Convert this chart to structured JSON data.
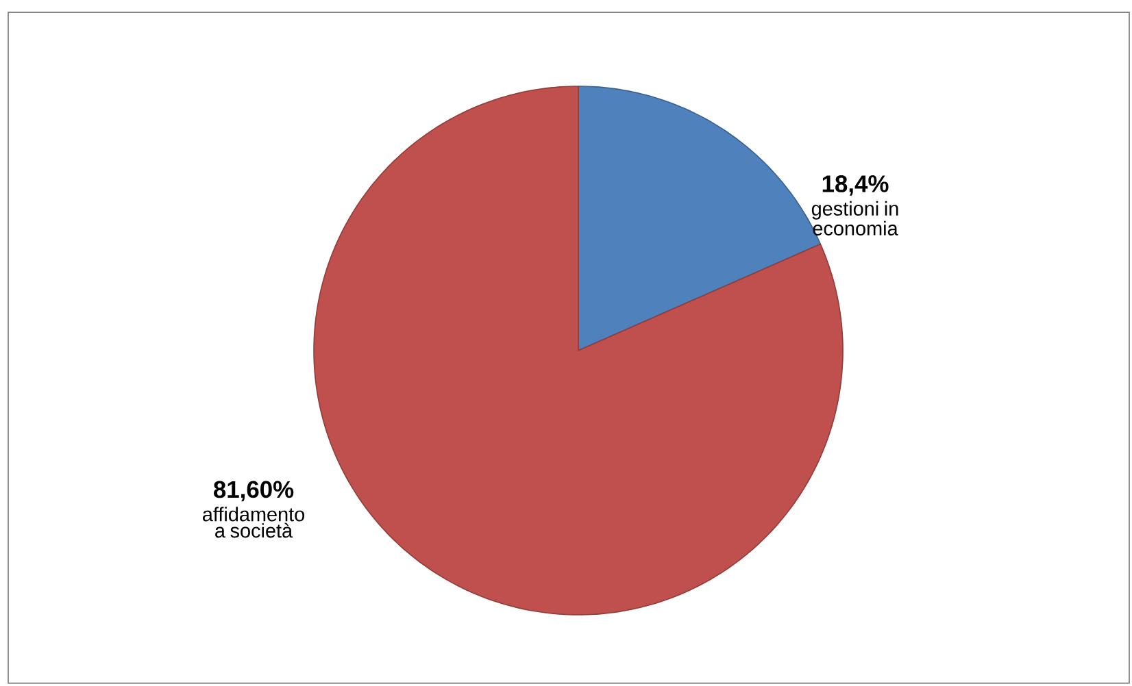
{
  "chart_data": {
    "type": "pie",
    "categories": [
      "gestioni in economia",
      "affidamento a società"
    ],
    "values": [
      18.4,
      81.6
    ],
    "value_labels": [
      "18,4%",
      "81,60%"
    ],
    "colors": [
      "#4f81bd",
      "#c0504d"
    ]
  }
}
